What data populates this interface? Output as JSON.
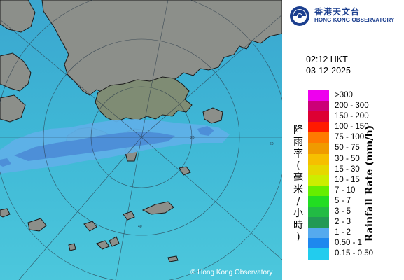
{
  "logo": {
    "zh": "香港天文台",
    "en": "HONG KONG OBSERVATORY"
  },
  "timestamp": {
    "time": "02:12 HKT",
    "date": "03-12-2025"
  },
  "legend": {
    "title_en": "Rainfall Rate (mm/h)",
    "title_zh": [
      "降",
      "雨",
      "率",
      "(",
      "毫",
      "米",
      "/",
      "小",
      "時",
      ")"
    ],
    "items": [
      {
        "label": ">300",
        "color": "#ee00ee"
      },
      {
        "label": "200 - 300",
        "color": "#cc0077"
      },
      {
        "label": "150 - 200",
        "color": "#dd0033"
      },
      {
        "label": "100 - 150",
        "color": "#ff1a00"
      },
      {
        "label": "75 - 100",
        "color": "#ff7a00"
      },
      {
        "label": "50 - 75",
        "color": "#f09a00"
      },
      {
        "label": "30 - 50",
        "color": "#f6bf00"
      },
      {
        "label": "15 - 30",
        "color": "#e6d800"
      },
      {
        "label": "10 - 15",
        "color": "#ccee00"
      },
      {
        "label": "7 - 10",
        "color": "#66ee00"
      },
      {
        "label": "5 - 7",
        "color": "#22dd22"
      },
      {
        "label": "3 - 5",
        "color": "#22bb44"
      },
      {
        "label": "2 - 3",
        "color": "#229955"
      },
      {
        "label": "1 - 2",
        "color": "#55aaee"
      },
      {
        "label": "0.50 - 1",
        "color": "#1e88ee"
      },
      {
        "label": "0.15 - 0.50",
        "color": "#22ccee"
      }
    ]
  },
  "map": {
    "copyright": "© Hong Kong Observatory",
    "range_labels": [
      "20",
      "40",
      "60"
    ],
    "sea_color": "#3bb6d6",
    "land_color": "#8c8f8a",
    "rain_light_color": "#5fb0e8",
    "rain_heavy_color": "#4d8fd8"
  }
}
